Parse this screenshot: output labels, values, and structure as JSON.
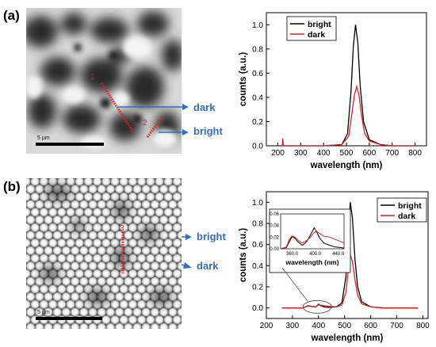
{
  "panel_a": {
    "letter": "(a)",
    "scalebar": "5 μm",
    "line1_label": "1",
    "line2_label": "2",
    "callout_dark": "dark",
    "callout_bright": "bright"
  },
  "panel_b": {
    "letter": "(b)",
    "scalebar": "5 μm",
    "line3_label": "3",
    "callout_bright": "bright",
    "callout_dark": "dark"
  },
  "colors": {
    "bright": "#000000",
    "dark": "#E02020",
    "callout": "#2F6FBF",
    "marker": "#E02020"
  },
  "chart_data": [
    {
      "type": "line",
      "xlabel": "wavelength (nm)",
      "ylabel": "counts (a.u.)",
      "xlim": [
        150,
        850
      ],
      "ylim": [
        0,
        1.1
      ],
      "xticks": [
        200,
        300,
        400,
        500,
        600,
        700,
        800
      ],
      "yticks": [
        0.0,
        0.2,
        0.4,
        0.6,
        0.8,
        1.0
      ],
      "legend": "top-left",
      "series": [
        {
          "name": "bright",
          "color": "#000000",
          "x": [
            220,
            300,
            400,
            480,
            505,
            520,
            530,
            540,
            550,
            560,
            575,
            600,
            650,
            700,
            800
          ],
          "y": [
            0.0,
            0.0,
            0.0,
            0.01,
            0.1,
            0.45,
            0.82,
            1.0,
            0.85,
            0.5,
            0.2,
            0.05,
            0.01,
            0.0,
            0.0
          ]
        },
        {
          "name": "dark",
          "color": "#E02020",
          "x": [
            220,
            222,
            225,
            300,
            400,
            480,
            510,
            525,
            535,
            545,
            555,
            565,
            580,
            600,
            650,
            700,
            800
          ],
          "y": [
            0.0,
            0.06,
            0.0,
            0.0,
            0.0,
            0.01,
            0.08,
            0.28,
            0.42,
            0.49,
            0.42,
            0.26,
            0.1,
            0.04,
            0.01,
            0.0,
            0.0
          ]
        }
      ]
    },
    {
      "type": "line",
      "xlabel": "wavelength (nm)",
      "ylabel": "counts (a.u.)",
      "xlim": [
        200,
        820
      ],
      "ylim": [
        -0.1,
        1.1
      ],
      "xticks": [
        200,
        300,
        400,
        500,
        600,
        700,
        800
      ],
      "yticks": [
        0.0,
        0.2,
        0.4,
        0.6,
        0.8,
        1.0
      ],
      "legend": "top-right",
      "series": [
        {
          "name": "bright",
          "color": "#000000",
          "x": [
            260,
            340,
            360,
            375,
            390,
            400,
            410,
            425,
            440,
            470,
            490,
            505,
            515,
            522,
            530,
            540,
            550,
            565,
            600,
            650,
            700,
            780
          ],
          "y": [
            0.0,
            0.0,
            0.02,
            0.015,
            0.008,
            0.035,
            0.02,
            0.008,
            0.005,
            0.01,
            0.05,
            0.3,
            0.75,
            1.0,
            0.85,
            0.45,
            0.2,
            0.06,
            0.01,
            0.0,
            0.0,
            0.0
          ]
        },
        {
          "name": "dark",
          "color": "#E02020",
          "x": [
            260,
            340,
            360,
            375,
            390,
            400,
            410,
            425,
            440,
            470,
            490,
            505,
            515,
            522,
            530,
            540,
            550,
            565,
            600,
            650,
            700,
            780
          ],
          "y": [
            0.0,
            0.0,
            0.022,
            0.015,
            0.01,
            0.03,
            0.025,
            0.02,
            0.015,
            0.01,
            0.03,
            0.15,
            0.38,
            0.5,
            0.44,
            0.26,
            0.12,
            0.04,
            0.01,
            0.0,
            0.0,
            0.0
          ]
        }
      ]
    },
    {
      "type": "line",
      "role": "inset",
      "xlabel": "wavelength (nm)",
      "xlim": [
        340,
        450
      ],
      "ylim": [
        0,
        0.06
      ],
      "xticks": [
        "360.0",
        "400.0",
        "440.0"
      ],
      "xtick_values": [
        360,
        400,
        440
      ],
      "yticks": [
        "0.00",
        "0.02",
        "0.04",
        "0.06"
      ],
      "ytick_values": [
        0,
        0.02,
        0.04,
        0.06
      ],
      "series": [
        {
          "color": "#000000",
          "x": [
            340,
            350,
            355,
            360,
            365,
            370,
            378,
            385,
            392,
            398,
            402,
            408,
            415,
            425,
            435,
            445,
            450
          ],
          "y": [
            0.0,
            0.002,
            0.012,
            0.021,
            0.018,
            0.012,
            0.006,
            0.012,
            0.024,
            0.036,
            0.03,
            0.018,
            0.01,
            0.006,
            0.003,
            0.002,
            0.001
          ]
        },
        {
          "color": "#E02020",
          "x": [
            340,
            350,
            355,
            360,
            365,
            370,
            378,
            385,
            392,
            398,
            402,
            408,
            415,
            425,
            435,
            445,
            450
          ],
          "y": [
            0.0,
            0.003,
            0.016,
            0.022,
            0.02,
            0.015,
            0.01,
            0.014,
            0.02,
            0.028,
            0.03,
            0.026,
            0.022,
            0.02,
            0.016,
            0.012,
            0.01
          ]
        }
      ]
    }
  ]
}
